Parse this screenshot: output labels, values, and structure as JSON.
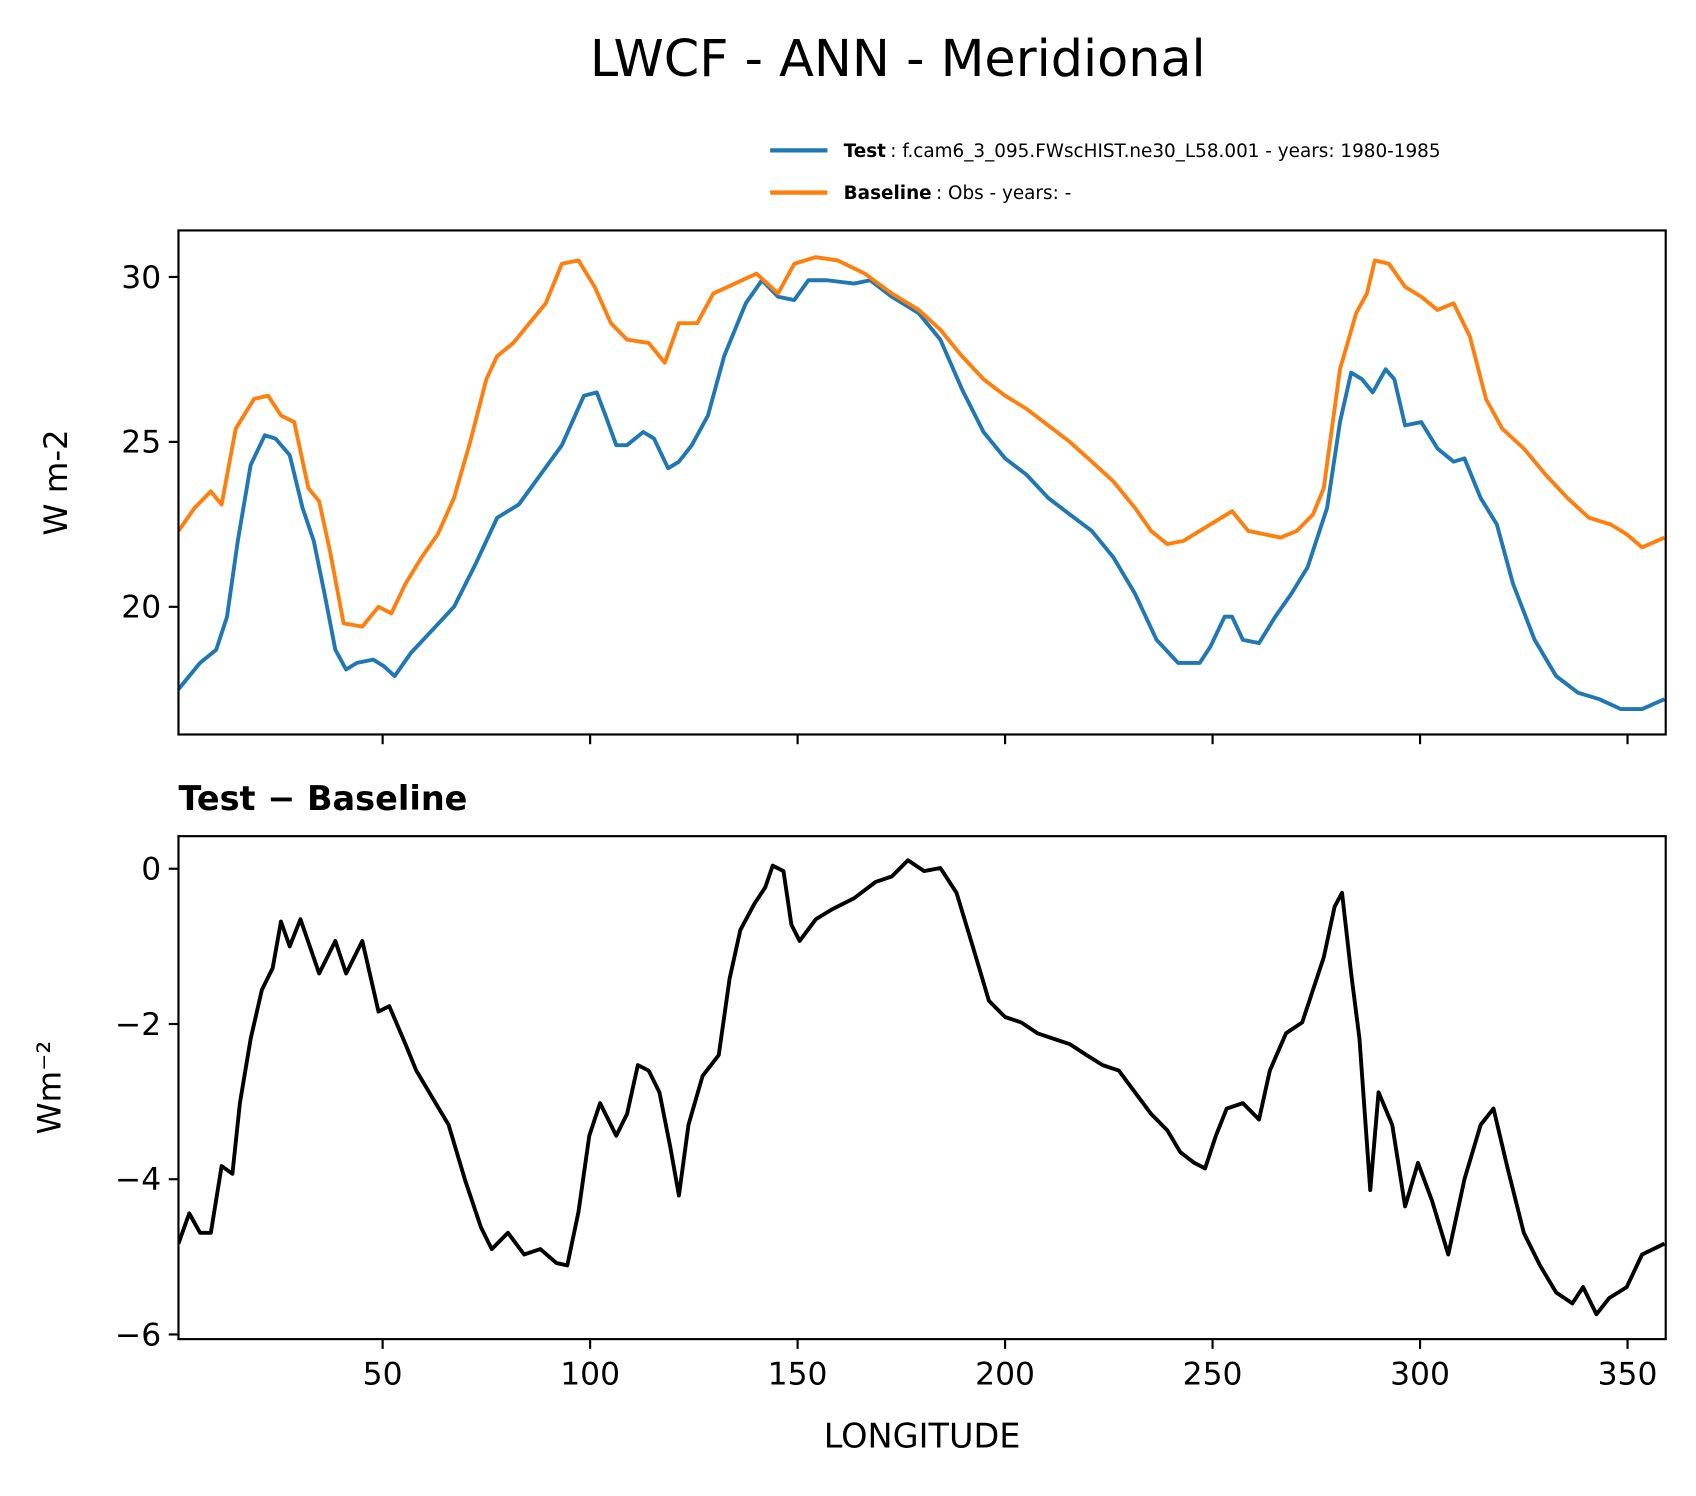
{
  "title": "LWCF - ANN - Meridional",
  "chart_data": [
    {
      "type": "line",
      "ylabel": "W m-2",
      "xlim": [
        0.8,
        359.2
      ],
      "ylim": [
        16.13,
        31.41
      ],
      "xticks": [
        50,
        100,
        150,
        200,
        250,
        300,
        350
      ],
      "show_xtick_labels": false,
      "yticks": [
        20,
        25,
        30
      ],
      "legend": "upper right",
      "series": [
        {
          "name": "Test",
          "description": ": f.cam6_3_095.FWscHIST.ne30_L58.001 - years: 1980-1985",
          "color": "#1f77b4",
          "x": [
            0.8,
            6.0,
            9.9,
            12.5,
            15.1,
            18.2,
            21.6,
            24.2,
            27.6,
            30.7,
            33.4,
            36.0,
            38.6,
            41.2,
            43.8,
            47.7,
            50.3,
            52.9,
            56.8,
            62.0,
            67.2,
            72.4,
            77.6,
            82.8,
            88.0,
            93.2,
            98.5,
            101.6,
            103.7,
            106.3,
            108.9,
            112.8,
            115.4,
            118.8,
            121.4,
            124.5,
            128.4,
            132.3,
            137.5,
            141.4,
            145.3,
            149.2,
            152.6,
            157.1,
            163.6,
            167.5,
            172.7,
            179.2,
            184.4,
            189.6,
            194.8,
            200.0,
            205.2,
            210.4,
            215.6,
            220.9,
            226.1,
            231.3,
            236.5,
            241.7,
            246.9,
            249.5,
            252.9,
            254.7,
            257.3,
            261.2,
            265.1,
            269.0,
            272.9,
            277.6,
            280.7,
            283.4,
            286.0,
            288.6,
            291.7,
            293.8,
            296.4,
            300.3,
            304.2,
            308.1,
            310.7,
            314.6,
            318.5,
            322.4,
            327.6,
            332.8,
            338.0,
            343.2,
            348.4,
            353.5,
            358.9
          ],
          "values": [
            17.5,
            18.3,
            18.7,
            19.7,
            22.0,
            24.3,
            25.2,
            25.1,
            24.6,
            23.0,
            22.0,
            20.4,
            18.7,
            18.1,
            18.3,
            18.4,
            18.2,
            17.9,
            18.6,
            19.3,
            20.0,
            21.3,
            22.7,
            23.1,
            24.0,
            24.9,
            26.4,
            26.5,
            25.8,
            24.9,
            24.9,
            25.3,
            25.1,
            24.2,
            24.4,
            24.9,
            25.8,
            27.6,
            29.2,
            29.9,
            29.4,
            29.3,
            29.9,
            29.9,
            29.8,
            29.9,
            29.4,
            28.9,
            28.1,
            26.6,
            25.3,
            24.5,
            24.0,
            23.3,
            22.8,
            22.3,
            21.5,
            20.4,
            19.0,
            18.3,
            18.3,
            18.8,
            19.7,
            19.7,
            19.0,
            18.9,
            19.7,
            20.4,
            21.2,
            23.0,
            25.6,
            27.1,
            26.9,
            26.5,
            27.2,
            26.9,
            25.5,
            25.6,
            24.8,
            24.4,
            24.5,
            23.3,
            22.5,
            20.7,
            19.0,
            17.9,
            17.4,
            17.2,
            16.9,
            16.9,
            17.2
          ]
        },
        {
          "name": "Baseline",
          "description": ": Obs - years: -",
          "color": "#ff7f0e",
          "x": [
            0.8,
            4.7,
            8.6,
            11.2,
            14.6,
            19.0,
            22.4,
            25.5,
            28.7,
            32.1,
            34.7,
            37.3,
            40.6,
            45.1,
            49.0,
            52.1,
            55.5,
            59.4,
            63.3,
            67.2,
            71.1,
            75.0,
            77.6,
            81.5,
            85.4,
            89.3,
            93.2,
            97.2,
            101.1,
            105.0,
            108.9,
            114.1,
            118.0,
            121.4,
            125.8,
            129.7,
            134.9,
            140.1,
            145.3,
            149.2,
            154.4,
            159.7,
            166.2,
            172.7,
            179.2,
            184.4,
            189.6,
            194.8,
            200.0,
            205.2,
            210.4,
            215.6,
            220.9,
            226.1,
            231.3,
            235.2,
            239.1,
            243.0,
            246.9,
            250.8,
            254.7,
            258.6,
            262.5,
            266.4,
            270.3,
            274.2,
            276.8,
            280.7,
            284.6,
            287.2,
            289.1,
            292.5,
            296.4,
            300.3,
            304.2,
            308.1,
            312.0,
            315.9,
            319.8,
            325.0,
            330.3,
            335.5,
            340.7,
            345.9,
            349.8,
            353.5,
            358.9
          ],
          "values": [
            22.3,
            23.0,
            23.5,
            23.1,
            25.4,
            26.3,
            26.4,
            25.8,
            25.6,
            23.6,
            23.2,
            21.7,
            19.5,
            19.4,
            20.0,
            19.8,
            20.7,
            21.5,
            22.2,
            23.3,
            25.0,
            26.9,
            27.6,
            28.0,
            28.6,
            29.2,
            30.4,
            30.5,
            29.7,
            28.6,
            28.1,
            28.0,
            27.4,
            28.6,
            28.6,
            29.5,
            29.8,
            30.1,
            29.5,
            30.4,
            30.6,
            30.5,
            30.1,
            29.5,
            29.0,
            28.4,
            27.6,
            26.9,
            26.4,
            26.0,
            25.5,
            25.0,
            24.4,
            23.8,
            23.0,
            22.3,
            21.9,
            22.0,
            22.3,
            22.6,
            22.9,
            22.3,
            22.2,
            22.1,
            22.3,
            22.8,
            23.6,
            27.2,
            28.9,
            29.5,
            30.5,
            30.4,
            29.7,
            29.4,
            29.0,
            29.2,
            28.2,
            26.3,
            25.4,
            24.8,
            24.0,
            23.3,
            22.7,
            22.5,
            22.2,
            21.8,
            22.1
          ]
        }
      ]
    },
    {
      "type": "line",
      "title": "Test − Baseline",
      "xlabel": "LONGITUDE",
      "ylabel": "Wm⁻²",
      "xlim": [
        0.8,
        359.2
      ],
      "ylim": [
        -6.06,
        0.42
      ],
      "xticks": [
        50,
        100,
        150,
        200,
        250,
        300,
        350
      ],
      "show_xtick_labels": true,
      "yticks": [
        {
          "value": -6,
          "label": "−6"
        },
        {
          "value": -4,
          "label": "−4"
        },
        {
          "value": -2,
          "label": "−2"
        },
        0
      ],
      "series": [
        {
          "color": "#000000",
          "x": [
            0.8,
            3.4,
            6.0,
            8.6,
            11.2,
            13.8,
            15.6,
            18.2,
            20.9,
            23.5,
            25.5,
            27.6,
            30.2,
            34.7,
            38.6,
            41.2,
            45.1,
            49.0,
            51.6,
            55.5,
            58.1,
            62.0,
            65.9,
            69.8,
            73.7,
            76.3,
            80.2,
            84.1,
            88.0,
            91.9,
            94.5,
            97.2,
            99.8,
            102.4,
            106.3,
            108.9,
            111.5,
            114.1,
            116.7,
            119.3,
            121.4,
            123.7,
            127.1,
            131.0,
            133.6,
            136.2,
            139.6,
            142.2,
            144.0,
            146.6,
            148.5,
            150.5,
            154.4,
            158.4,
            163.6,
            168.8,
            172.7,
            176.6,
            180.5,
            184.4,
            188.3,
            192.2,
            196.1,
            200.0,
            203.9,
            207.8,
            211.7,
            215.6,
            219.6,
            223.5,
            227.4,
            231.3,
            235.2,
            239.1,
            242.2,
            245.6,
            248.2,
            250.8,
            253.4,
            257.3,
            261.2,
            263.8,
            267.7,
            271.6,
            274.2,
            276.8,
            279.4,
            281.2,
            283.4,
            285.4,
            288.0,
            290.0,
            293.3,
            296.4,
            299.5,
            302.9,
            306.8,
            310.7,
            314.6,
            317.7,
            321.1,
            325.0,
            328.9,
            332.8,
            336.7,
            339.3,
            342.5,
            345.6,
            349.8,
            353.5,
            358.9
          ],
          "values": [
            -4.83,
            -4.44,
            -4.69,
            -4.69,
            -3.83,
            -3.93,
            -3.02,
            -2.19,
            -1.56,
            -1.28,
            -0.68,
            -1.0,
            -0.65,
            -1.35,
            -0.93,
            -1.35,
            -0.93,
            -1.84,
            -1.77,
            -2.26,
            -2.6,
            -2.95,
            -3.3,
            -4.0,
            -4.62,
            -4.9,
            -4.69,
            -4.97,
            -4.9,
            -5.08,
            -5.11,
            -4.42,
            -3.44,
            -3.02,
            -3.44,
            -3.16,
            -2.53,
            -2.6,
            -2.88,
            -3.58,
            -4.21,
            -3.3,
            -2.67,
            -2.4,
            -1.42,
            -0.79,
            -0.45,
            -0.24,
            0.04,
            -0.03,
            -0.72,
            -0.93,
            -0.65,
            -0.52,
            -0.38,
            -0.17,
            -0.1,
            0.11,
            -0.03,
            0.01,
            -0.31,
            -1.0,
            -1.7,
            -1.91,
            -1.98,
            -2.12,
            -2.19,
            -2.26,
            -2.4,
            -2.53,
            -2.6,
            -2.88,
            -3.16,
            -3.37,
            -3.65,
            -3.79,
            -3.86,
            -3.44,
            -3.09,
            -3.02,
            -3.23,
            -2.6,
            -2.12,
            -1.98,
            -1.56,
            -1.14,
            -0.49,
            -0.31,
            -1.35,
            -2.19,
            -4.14,
            -2.88,
            -3.3,
            -4.35,
            -3.79,
            -4.28,
            -4.97,
            -4.0,
            -3.3,
            -3.09,
            -3.86,
            -4.69,
            -5.11,
            -5.46,
            -5.6,
            -5.39,
            -5.74,
            -5.53,
            -5.39,
            -4.97,
            -4.83
          ]
        }
      ]
    }
  ]
}
